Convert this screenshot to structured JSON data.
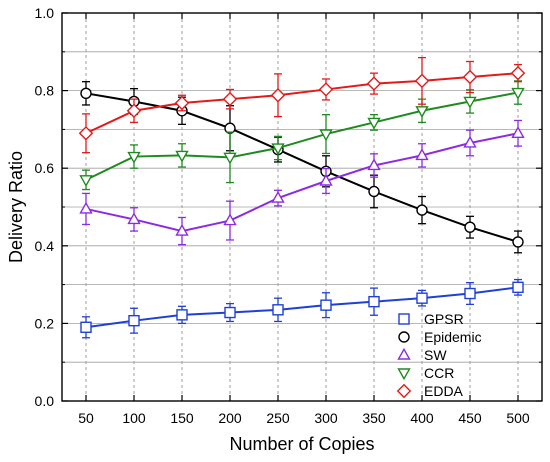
{
  "chart_data": {
    "type": "line",
    "xlabel": "Number of Copies",
    "ylabel": "Delivery Ratio",
    "x": [
      50,
      100,
      150,
      200,
      250,
      300,
      350,
      400,
      450,
      500
    ],
    "xlim": [
      25,
      525
    ],
    "ylim": [
      0.0,
      1.0
    ],
    "yticks": [
      "0.0",
      "0.2",
      "0.4",
      "0.6",
      "0.8",
      "1.0"
    ],
    "yticks_values": [
      0.0,
      0.2,
      0.4,
      0.6,
      0.8,
      1.0
    ],
    "minor_y_step": 0.1,
    "grid": "vertical dashed at x ticks, horizontal solid at major and minor y",
    "legend_position": "bottom-right",
    "series": [
      {
        "name": "GPSR",
        "marker": "square",
        "color": "#1f3fd6",
        "values": [
          0.19,
          0.207,
          0.222,
          0.228,
          0.235,
          0.247,
          0.256,
          0.265,
          0.277,
          0.293
        ],
        "errors": [
          0.027,
          0.032,
          0.022,
          0.023,
          0.03,
          0.032,
          0.035,
          0.02,
          0.028,
          0.02
        ]
      },
      {
        "name": "Epidemic",
        "marker": "circle",
        "color": "#000000",
        "values": [
          0.793,
          0.772,
          0.748,
          0.703,
          0.648,
          0.592,
          0.54,
          0.492,
          0.448,
          0.41
        ],
        "errors": [
          0.03,
          0.033,
          0.035,
          0.058,
          0.032,
          0.04,
          0.042,
          0.035,
          0.028,
          0.028
        ]
      },
      {
        "name": "SW",
        "marker": "triangle-up",
        "color": "#8c2be2",
        "values": [
          0.495,
          0.468,
          0.438,
          0.465,
          0.523,
          0.567,
          0.607,
          0.633,
          0.665,
          0.69
        ],
        "errors": [
          0.04,
          0.03,
          0.035,
          0.05,
          0.02,
          0.032,
          0.03,
          0.03,
          0.033,
          0.033
        ]
      },
      {
        "name": "CCR",
        "marker": "triangle-down",
        "color": "#1f8a1f",
        "values": [
          0.57,
          0.63,
          0.633,
          0.628,
          0.652,
          0.688,
          0.718,
          0.748,
          0.772,
          0.795
        ],
        "errors": [
          0.025,
          0.03,
          0.03,
          0.065,
          0.03,
          0.05,
          0.02,
          0.03,
          0.03,
          0.03
        ]
      },
      {
        "name": "EDDA",
        "marker": "diamond",
        "color": "#e31a1a",
        "values": [
          0.69,
          0.748,
          0.768,
          0.778,
          0.788,
          0.803,
          0.818,
          0.825,
          0.835,
          0.845
        ],
        "errors": [
          0.05,
          0.03,
          0.02,
          0.025,
          0.055,
          0.027,
          0.027,
          0.06,
          0.04,
          0.022
        ]
      }
    ]
  }
}
